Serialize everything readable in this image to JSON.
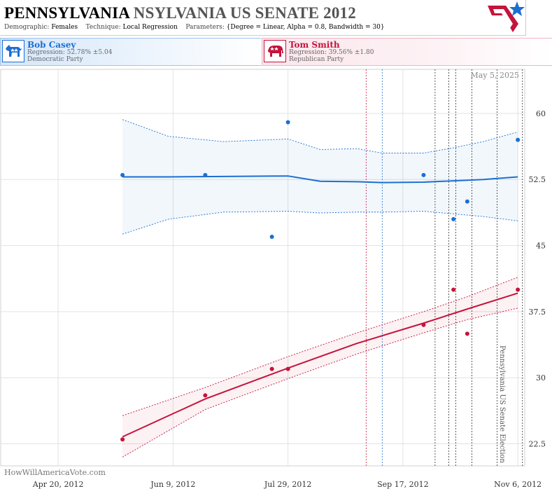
{
  "header": {
    "title_main": "PENNSYLVANIA",
    "title_sub": "NSYLVANIA US SENATE 2012",
    "demographic_label": "Demographic:",
    "demographic_value": "Females",
    "technique_label": "Technique:",
    "technique_value": "Local Regression",
    "parameters_label": "Parameters:",
    "parameters_value": "{Degree = Linear, Alpha = 0.8, Bandwidth = 30}"
  },
  "candidates": [
    {
      "name": "Bob Casey",
      "regression": "Regression: 52.78% ±5.04",
      "party": "Democratic Party",
      "color": "#1c6fd1"
    },
    {
      "name": "Tom Smith",
      "regression": "Regression: 39.56% ±1.80",
      "party": "Republican Party",
      "color": "#c4143b"
    }
  ],
  "date_stamp": "May 5, 2025",
  "election_label": "Pennsylvania US Senate Election",
  "watermark": "HowWillAmericaVote.com",
  "colors": {
    "dem": "#1c6fd1",
    "rep": "#c4143b",
    "grid": "#e3e3e3"
  },
  "chart_data": {
    "type": "scatter",
    "x_axis": {
      "type": "date",
      "ticks": [
        "Apr 20, 2012",
        "Jun 9, 2012",
        "Jul 29, 2012",
        "Sep 17, 2012",
        "Nov 6, 2012"
      ],
      "range": [
        "2012-03-26",
        "2012-11-09"
      ]
    },
    "y_axis": {
      "ticks": [
        "22.5",
        "30",
        "37.5",
        "45",
        "52.5",
        "60"
      ],
      "range": [
        20,
        65
      ],
      "position": "right"
    },
    "grid": true,
    "vertical_markers": [
      {
        "date": "2012-09-01",
        "color": "#c4143b"
      },
      {
        "date": "2012-09-08",
        "color": "#1c6fd1"
      },
      {
        "date": "2012-10-01",
        "color": "#333"
      },
      {
        "date": "2012-10-07",
        "color": "#333"
      },
      {
        "date": "2012-10-10",
        "color": "#333"
      },
      {
        "date": "2012-10-17",
        "color": "#333"
      },
      {
        "date": "2012-10-28",
        "color": "#333"
      },
      {
        "date": "2012-11-08",
        "color": "#333"
      }
    ],
    "series": [
      {
        "name": "Bob Casey",
        "color": "#1c6fd1",
        "points": [
          {
            "x": "2012-05-18",
            "y": 53
          },
          {
            "x": "2012-06-23",
            "y": 53
          },
          {
            "x": "2012-07-22",
            "y": 46
          },
          {
            "x": "2012-07-29",
            "y": 59
          },
          {
            "x": "2012-09-26",
            "y": 53
          },
          {
            "x": "2012-10-09",
            "y": 48
          },
          {
            "x": "2012-10-15",
            "y": 50
          },
          {
            "x": "2012-11-06",
            "y": 57
          }
        ],
        "trend": [
          {
            "x": "2012-05-18",
            "y": 52.8,
            "lo": 46.3,
            "hi": 59.3
          },
          {
            "x": "2012-06-07",
            "y": 52.8,
            "lo": 48.0,
            "hi": 57.4
          },
          {
            "x": "2012-07-01",
            "y": 52.85,
            "lo": 48.8,
            "hi": 56.8
          },
          {
            "x": "2012-07-29",
            "y": 52.9,
            "lo": 48.9,
            "hi": 57.1
          },
          {
            "x": "2012-08-12",
            "y": 52.3,
            "lo": 48.7,
            "hi": 55.9
          },
          {
            "x": "2012-08-28",
            "y": 52.25,
            "lo": 48.8,
            "hi": 56.0
          },
          {
            "x": "2012-09-08",
            "y": 52.15,
            "lo": 48.8,
            "hi": 55.5
          },
          {
            "x": "2012-09-26",
            "y": 52.2,
            "lo": 48.9,
            "hi": 55.5
          },
          {
            "x": "2012-10-09",
            "y": 52.35,
            "lo": 48.6,
            "hi": 56.1
          },
          {
            "x": "2012-10-22",
            "y": 52.5,
            "lo": 48.3,
            "hi": 56.8
          },
          {
            "x": "2012-11-06",
            "y": 52.8,
            "lo": 47.8,
            "hi": 57.9
          }
        ]
      },
      {
        "name": "Tom Smith",
        "color": "#c4143b",
        "points": [
          {
            "x": "2012-05-18",
            "y": 23
          },
          {
            "x": "2012-06-23",
            "y": 28
          },
          {
            "x": "2012-07-22",
            "y": 31
          },
          {
            "x": "2012-07-29",
            "y": 31
          },
          {
            "x": "2012-09-26",
            "y": 36
          },
          {
            "x": "2012-10-09",
            "y": 40
          },
          {
            "x": "2012-10-15",
            "y": 35
          },
          {
            "x": "2012-11-06",
            "y": 40
          }
        ],
        "trend": [
          {
            "x": "2012-05-18",
            "y": 23.3,
            "lo": 21.0,
            "hi": 25.7
          },
          {
            "x": "2012-06-23",
            "y": 27.6,
            "lo": 26.4,
            "hi": 28.9
          },
          {
            "x": "2012-07-29",
            "y": 31.1,
            "lo": 29.9,
            "hi": 32.4
          },
          {
            "x": "2012-08-28",
            "y": 33.9,
            "lo": 32.7,
            "hi": 35.1
          },
          {
            "x": "2012-09-26",
            "y": 36.2,
            "lo": 35.1,
            "hi": 37.5
          },
          {
            "x": "2012-10-15",
            "y": 37.8,
            "lo": 36.6,
            "hi": 39.2
          },
          {
            "x": "2012-11-06",
            "y": 39.6,
            "lo": 37.9,
            "hi": 41.4
          }
        ]
      }
    ]
  }
}
